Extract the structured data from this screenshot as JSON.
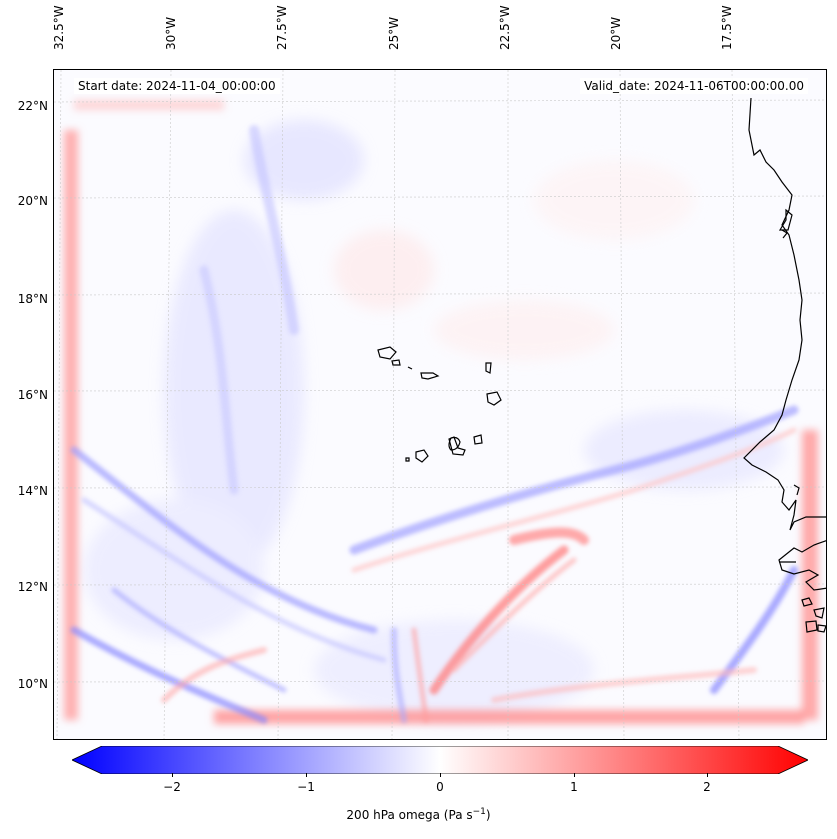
{
  "map": {
    "start_date": "Start date: 2024-11-04_00:00:00",
    "valid_date": "Valid_date: 2024-11-06T00:00:00.00",
    "lon_labels": [
      "32.5°W",
      "30°W",
      "27.5°W",
      "25°W",
      "22.5°W",
      "20°W",
      "17.5°W"
    ],
    "lat_labels": [
      "22°N",
      "20°N",
      "18°N",
      "16°N",
      "14°N",
      "12°N",
      "10°N"
    ],
    "field": "200 hPa omega",
    "features": [
      "Cape Verde islands",
      "West African coastline (Senegal, Gambia, Guinea-Bissau)"
    ]
  },
  "colorbar": {
    "label_main": "200 hPa omega (Pa s",
    "label_exp": "−1",
    "label_close": ")",
    "ticks": [
      "−2",
      "−1",
      "0",
      "1",
      "2"
    ],
    "min": -2.75,
    "max": 2.75,
    "cmap": [
      "#0000ff",
      "#ffffff",
      "#ff0000"
    ]
  }
}
